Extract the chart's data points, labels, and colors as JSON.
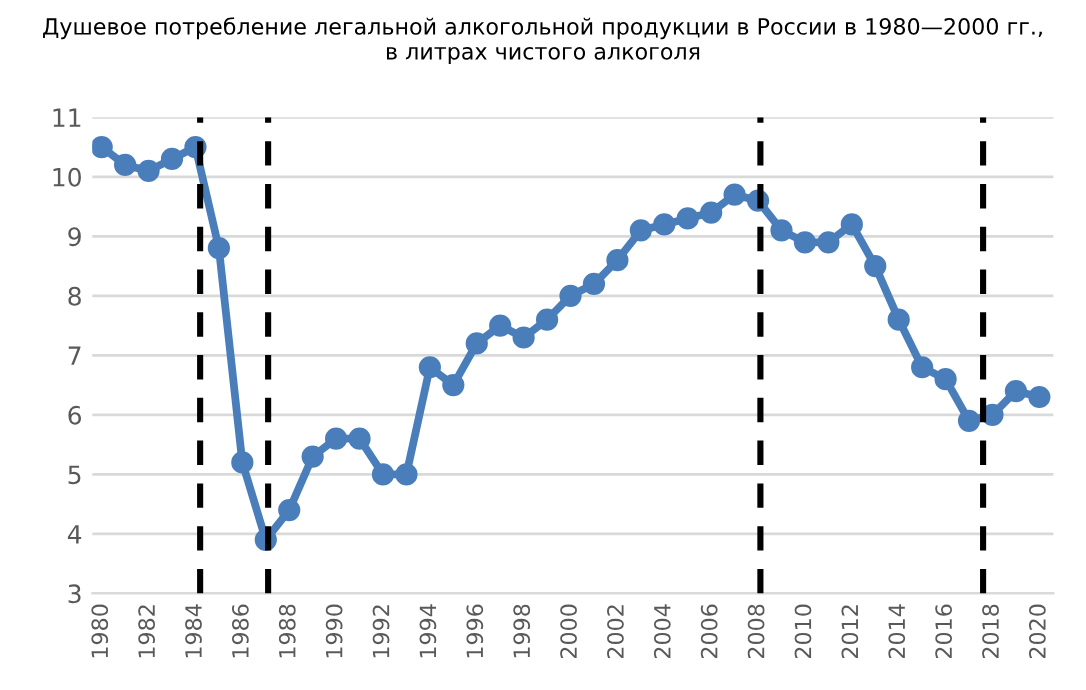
{
  "chart_data": {
    "type": "line",
    "title": "Душевое потребление легальной алкогольной продукции в России в 1980—2000 гг.,\nв литрах чистого алкоголя",
    "x": [
      1980,
      1981,
      1982,
      1983,
      1984,
      1985,
      1986,
      1987,
      1988,
      1989,
      1990,
      1991,
      1992,
      1993,
      1994,
      1995,
      1996,
      1997,
      1998,
      1999,
      2000,
      2001,
      2002,
      2003,
      2004,
      2005,
      2006,
      2007,
      2008,
      2009,
      2010,
      2011,
      2012,
      2013,
      2014,
      2015,
      2016,
      2017,
      2018,
      2019,
      2020
    ],
    "series": [
      {
        "color": "#4a7ebb",
        "values": [
          10.5,
          10.2,
          10.1,
          10.3,
          10.5,
          8.8,
          5.2,
          3.9,
          4.4,
          5.3,
          5.6,
          5.6,
          5.0,
          5.0,
          6.8,
          6.5,
          7.2,
          7.5,
          7.3,
          7.6,
          8.0,
          8.2,
          8.6,
          9.1,
          9.2,
          9.3,
          9.4,
          9.7,
          9.6,
          9.1,
          8.9,
          8.9,
          9.2,
          8.5,
          7.6,
          6.8,
          6.6,
          5.9,
          6.0,
          6.4,
          6.3
        ]
      }
    ],
    "xlim": [
      1979.6,
      2020.6
    ],
    "xticks": [
      1980,
      1982,
      1984,
      1986,
      1988,
      1990,
      1992,
      1994,
      1996,
      1998,
      2000,
      2002,
      2004,
      2006,
      2008,
      2010,
      2012,
      2014,
      2016,
      2018,
      2020
    ],
    "ylim": [
      3,
      11
    ],
    "yticks": [
      3,
      4,
      5,
      6,
      7,
      8,
      9,
      10,
      11
    ],
    "ref_lines": [
      {
        "axis": "x",
        "value": 1984.2,
        "color": "#000000",
        "line_style": "dashed"
      },
      {
        "axis": "x",
        "value": 1987.1,
        "color": "#000000",
        "line_style": "dashed"
      },
      {
        "axis": "x",
        "value": 2008.1,
        "color": "#000000",
        "line_style": "dashed"
      },
      {
        "axis": "x",
        "value": 2017.6,
        "color": "#000000",
        "line_style": "dashed"
      }
    ],
    "grid": "y",
    "marker": "circle",
    "line_style": "solid",
    "legend": false
  }
}
